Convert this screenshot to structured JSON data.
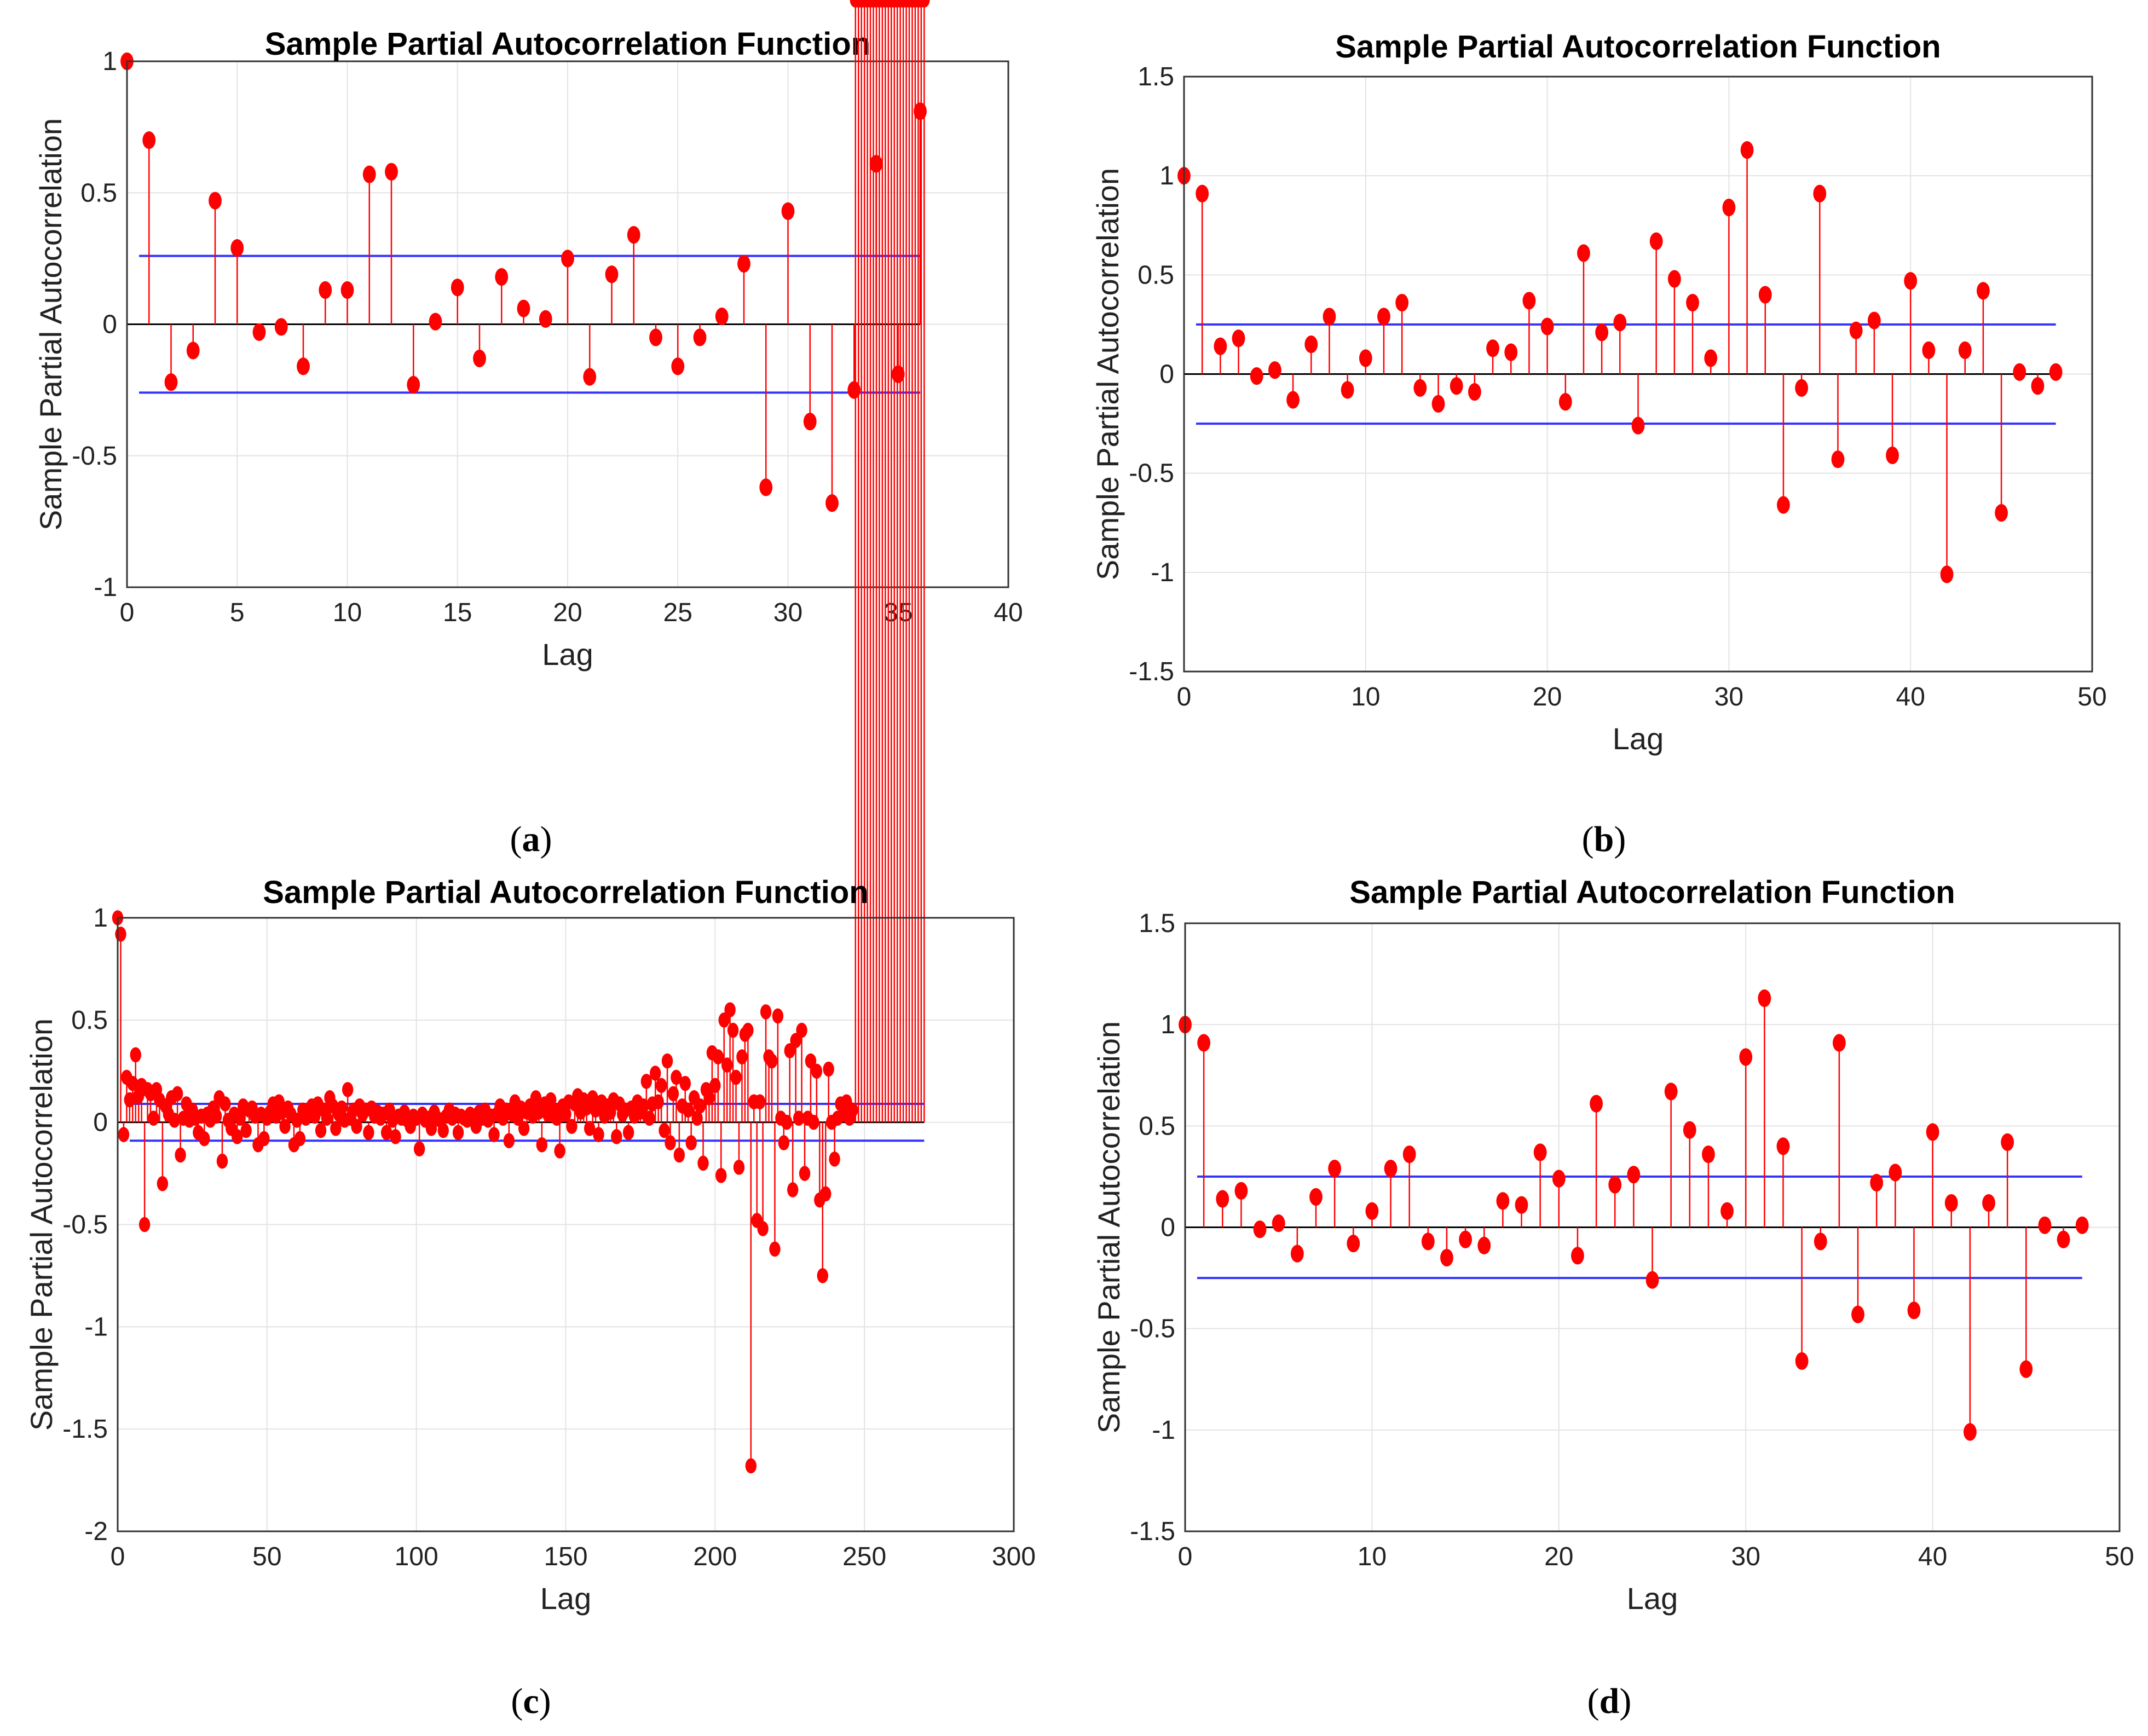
{
  "chart_data": [
    {
      "type": "stem",
      "panel": "a",
      "caption": {
        "open": "(",
        "letter": "a",
        "close": ")"
      },
      "title": "Sample Partial Autocorrelation Function",
      "xlabel": "Lag",
      "ylabel": "Sample Partial Autocorrelation",
      "xlim": [
        0,
        40
      ],
      "ylim": [
        -1,
        1
      ],
      "xticks": [
        0,
        5,
        10,
        15,
        20,
        25,
        30,
        35,
        40
      ],
      "yticks": [
        -1,
        -0.5,
        0,
        0.5,
        1
      ],
      "grid": true,
      "confidence_bounds": [
        0.26,
        -0.26
      ],
      "colors": {
        "stem": "#ff0000",
        "bound": "#3333ff",
        "zero": "#000000"
      },
      "lags": [
        0,
        1,
        2,
        3,
        4,
        5,
        6,
        7,
        8,
        9,
        10,
        11,
        12,
        13,
        14,
        15,
        16,
        17,
        18,
        19,
        20,
        21,
        22,
        23,
        24,
        25,
        26,
        27,
        28,
        29,
        30,
        31,
        32,
        33,
        34,
        35,
        36
      ],
      "values": [
        1.0,
        0.7,
        -0.22,
        -0.1,
        0.47,
        0.29,
        -0.03,
        -0.01,
        -0.16,
        0.13,
        0.13,
        0.57,
        0.58,
        -0.23,
        0.01,
        0.14,
        -0.13,
        0.18,
        0.06,
        0.02,
        0.25,
        -0.2,
        0.19,
        0.34,
        -0.05,
        -0.16,
        -0.05,
        0.03,
        0.23,
        -0.62,
        0.43,
        -0.37,
        -0.68,
        -0.25,
        0.61,
        -0.19,
        0.81
      ]
    },
    {
      "type": "stem",
      "panel": "b",
      "caption": {
        "open": "(",
        "letter": "b",
        "close": ")"
      },
      "title": "Sample Partial Autocorrelation Function",
      "xlabel": "Lag",
      "ylabel": "Sample Partial Autocorrelation",
      "xlim": [
        0,
        50
      ],
      "ylim": [
        -1.5,
        1.5
      ],
      "xticks": [
        0,
        10,
        20,
        30,
        40,
        50
      ],
      "yticks": [
        -1.5,
        -1,
        -0.5,
        0,
        0.5,
        1,
        1.5
      ],
      "grid": true,
      "confidence_bounds": [
        0.25,
        -0.25
      ],
      "colors": {
        "stem": "#ff0000",
        "bound": "#3333ff",
        "zero": "#000000"
      },
      "lags": [
        0,
        1,
        2,
        3,
        4,
        5,
        6,
        7,
        8,
        9,
        10,
        11,
        12,
        13,
        14,
        15,
        16,
        17,
        18,
        19,
        20,
        21,
        22,
        23,
        24,
        25,
        26,
        27,
        28,
        29,
        30,
        31,
        32,
        33,
        34,
        35,
        36,
        37,
        38,
        39,
        40,
        41,
        42,
        43,
        44,
        45,
        46,
        47,
        48
      ],
      "values": [
        1.0,
        0.91,
        0.14,
        0.18,
        -0.01,
        0.02,
        -0.13,
        0.15,
        0.29,
        -0.08,
        0.08,
        0.29,
        0.36,
        -0.07,
        -0.15,
        -0.06,
        -0.09,
        0.13,
        0.11,
        0.37,
        0.24,
        -0.14,
        0.61,
        0.21,
        0.26,
        -0.26,
        0.67,
        0.48,
        0.36,
        0.08,
        0.84,
        1.13,
        0.4,
        -0.66,
        -0.07,
        0.91,
        -0.43,
        0.22,
        0.27,
        -0.41,
        0.47,
        0.12,
        -1.01,
        0.12,
        0.42,
        -0.7,
        0.01,
        -0.06,
        0.01
      ]
    },
    {
      "type": "stem",
      "panel": "c",
      "caption": {
        "open": "(",
        "letter": "c",
        "close": ")"
      },
      "title": "Sample Partial Autocorrelation Function",
      "xlabel": "Lag",
      "ylabel": "Sample Partial Autocorrelation",
      "xlim": [
        0,
        300
      ],
      "ylim": [
        -2,
        1
      ],
      "xticks": [
        0,
        50,
        100,
        150,
        200,
        250,
        300
      ],
      "yticks": [
        -2,
        -1.5,
        -1,
        -0.5,
        0,
        0.5,
        1
      ],
      "grid": true,
      "confidence_bounds": [
        0.09,
        -0.09
      ],
      "colors": {
        "stem": "#ff0000",
        "bound": "#3333ff",
        "zero": "#000000"
      },
      "lags": [
        0,
        1,
        2,
        3,
        4,
        5,
        6,
        7,
        8,
        9,
        10,
        11,
        12,
        13,
        14,
        15,
        16,
        17,
        18,
        19,
        20,
        21,
        22,
        23,
        24,
        25,
        26,
        27,
        28,
        29,
        30,
        31,
        32,
        33,
        34,
        35,
        36,
        37,
        38,
        39,
        40,
        41,
        42,
        43,
        44,
        45,
        46,
        47,
        48,
        49,
        50,
        51,
        52,
        53,
        54,
        55,
        56,
        57,
        58,
        59,
        60,
        61,
        62,
        63,
        64,
        65,
        66,
        67,
        68,
        69,
        70,
        71,
        72,
        73,
        74,
        75,
        76,
        77,
        78,
        79,
        80,
        81,
        82,
        83,
        84,
        85,
        86,
        87,
        88,
        89,
        90,
        91,
        92,
        93,
        94,
        95,
        96,
        97,
        98,
        99,
        100,
        101,
        102,
        103,
        104,
        105,
        106,
        107,
        108,
        109,
        110,
        111,
        112,
        113,
        114,
        115,
        116,
        117,
        118,
        119,
        120,
        121,
        122,
        123,
        124,
        125,
        126,
        127,
        128,
        129,
        130,
        131,
        132,
        133,
        134,
        135,
        136,
        137,
        138,
        139,
        140,
        141,
        142,
        143,
        144,
        145,
        146,
        147,
        148,
        149,
        150,
        151,
        152,
        153,
        154,
        155,
        156,
        157,
        158,
        159,
        160,
        161,
        162,
        163,
        164,
        165,
        166,
        167,
        168,
        169,
        170,
        171,
        172,
        173,
        174,
        175,
        176,
        177,
        178,
        179,
        180,
        181,
        182,
        183,
        184,
        185,
        186,
        187,
        188,
        189,
        190,
        191,
        192,
        193,
        194,
        195,
        196,
        197,
        198,
        199,
        200,
        201,
        202,
        203,
        204,
        205,
        206,
        207,
        208,
        209,
        210,
        211,
        212,
        213,
        214,
        215,
        216,
        217,
        218,
        219,
        220,
        221,
        222,
        223,
        224,
        225,
        226,
        227,
        228,
        229,
        230,
        231,
        232,
        233,
        234,
        235,
        236,
        237,
        238,
        239,
        240,
        241,
        242,
        243,
        244,
        245,
        246,
        247,
        248,
        249,
        250,
        251,
        252,
        253,
        254,
        255,
        256,
        257,
        258,
        259,
        260,
        261,
        262,
        263,
        264,
        265,
        266,
        267,
        268,
        269,
        270
      ],
      "values": [
        1.0,
        0.92,
        -0.06,
        0.22,
        0.11,
        0.19,
        0.33,
        0.13,
        0.18,
        -0.5,
        0.16,
        0.14,
        0.02,
        0.16,
        0.11,
        -0.3,
        0.08,
        0.04,
        0.12,
        0.01,
        0.14,
        -0.16,
        0.02,
        0.09,
        0.01,
        0.06,
        0.02,
        -0.05,
        0.03,
        -0.08,
        0.04,
        0.01,
        0.07,
        0.03,
        0.12,
        -0.19,
        0.09,
        0.01,
        -0.03,
        0.04,
        -0.07,
        0.02,
        0.08,
        -0.04,
        0.06,
        0.07,
        0.03,
        -0.11,
        0.04,
        -0.08,
        0.02,
        0.05,
        0.09,
        0.03,
        0.1,
        0.05,
        -0.02,
        0.07,
        0.04,
        -0.11,
        0.01,
        -0.08,
        0.06,
        0.02,
        0.05,
        0.08,
        0.03,
        0.09,
        -0.04,
        0.06,
        0.02,
        0.12,
        0.08,
        -0.03,
        0.04,
        0.07,
        0.01,
        0.16,
        0.02,
        0.06,
        -0.02,
        0.08,
        0.04,
        0.06,
        -0.05,
        0.07,
        0.03,
        0.05,
        0.02,
        0.04,
        -0.05,
        0.06,
        0.01,
        -0.07,
        0.03,
        0.02,
        0.05,
        0.01,
        -0.02,
        0.03,
        0.02,
        -0.13,
        0.04,
        0.01,
        0.02,
        -0.03,
        0.05,
        0.02,
        0.01,
        -0.04,
        0.03,
        0.06,
        0.02,
        0.04,
        -0.05,
        0.03,
        0.02,
        0.01,
        0.04,
        0.03,
        -0.02,
        0.05,
        0.02,
        0.06,
        0.01,
        0.03,
        -0.06,
        0.04,
        0.08,
        0.02,
        0.06,
        -0.09,
        0.04,
        0.1,
        0.02,
        0.07,
        -0.03,
        0.05,
        0.08,
        0.03,
        0.12,
        0.05,
        -0.11,
        0.09,
        0.04,
        0.11,
        0.06,
        0.02,
        -0.14,
        0.08,
        0.04,
        0.1,
        -0.02,
        0.09,
        0.13,
        0.05,
        0.11,
        0.07,
        -0.03,
        0.12,
        0.06,
        -0.06,
        0.1,
        0.03,
        0.08,
        0.05,
        0.11,
        -0.07,
        0.09,
        0.04,
        0.06,
        -0.05,
        0.07,
        0.03,
        0.1,
        0.05,
        0.08,
        0.2,
        0.02,
        0.09,
        0.24,
        0.1,
        0.18,
        -0.04,
        0.3,
        -0.1,
        0.14,
        0.22,
        -0.16,
        0.08,
        0.19,
        0.06,
        -0.1,
        0.12,
        0.02,
        0.08,
        -0.2,
        0.16,
        0.12,
        0.34,
        0.18,
        0.32,
        -0.26,
        0.5,
        0.28,
        0.55,
        0.45,
        0.22,
        -0.22,
        0.32,
        0.43,
        0.45,
        -1.68,
        0.1,
        -0.48,
        0.1,
        -0.52,
        0.54,
        0.32,
        0.3,
        -0.62,
        0.52,
        0.02,
        -0.1,
        0.0,
        0.35,
        -0.33,
        0.4,
        0.02,
        0.45,
        -0.25,
        0.02,
        0.3,
        0.0,
        0.25,
        -0.38,
        -0.75,
        -0.35,
        0.26,
        0.0,
        -0.18,
        0.02,
        0.09,
        0.04,
        0.1,
        0.02,
        0.06
      ]
    },
    {
      "type": "stem",
      "panel": "d",
      "caption": {
        "open": "(",
        "letter": "d",
        "close": ")"
      },
      "title": "Sample Partial Autocorrelation Function",
      "xlabel": "Lag",
      "ylabel": "Sample Partial Autocorrelation",
      "xlim": [
        0,
        50
      ],
      "ylim": [
        -1.5,
        1.5
      ],
      "xticks": [
        0,
        10,
        20,
        30,
        40,
        50
      ],
      "yticks": [
        -1.5,
        -1,
        -0.5,
        0,
        0.5,
        1,
        1.5
      ],
      "grid": true,
      "confidence_bounds": [
        0.25,
        -0.25
      ],
      "colors": {
        "stem": "#ff0000",
        "bound": "#3333ff",
        "zero": "#000000"
      },
      "lags": [
        0,
        1,
        2,
        3,
        4,
        5,
        6,
        7,
        8,
        9,
        10,
        11,
        12,
        13,
        14,
        15,
        16,
        17,
        18,
        19,
        20,
        21,
        22,
        23,
        24,
        25,
        26,
        27,
        28,
        29,
        30,
        31,
        32,
        33,
        34,
        35,
        36,
        37,
        38,
        39,
        40,
        41,
        42,
        43,
        44,
        45,
        46,
        47,
        48
      ],
      "values": [
        1.0,
        0.91,
        0.14,
        0.18,
        -0.01,
        0.02,
        -0.13,
        0.15,
        0.29,
        -0.08,
        0.08,
        0.29,
        0.36,
        -0.07,
        -0.15,
        -0.06,
        -0.09,
        0.13,
        0.11,
        0.37,
        0.24,
        -0.14,
        0.61,
        0.21,
        0.26,
        -0.26,
        0.67,
        0.48,
        0.36,
        0.08,
        0.84,
        1.13,
        0.4,
        -0.66,
        -0.07,
        0.91,
        -0.43,
        0.22,
        0.27,
        -0.41,
        0.47,
        0.12,
        -1.01,
        0.12,
        0.42,
        -0.7,
        0.01,
        -0.06,
        0.01
      ]
    }
  ]
}
